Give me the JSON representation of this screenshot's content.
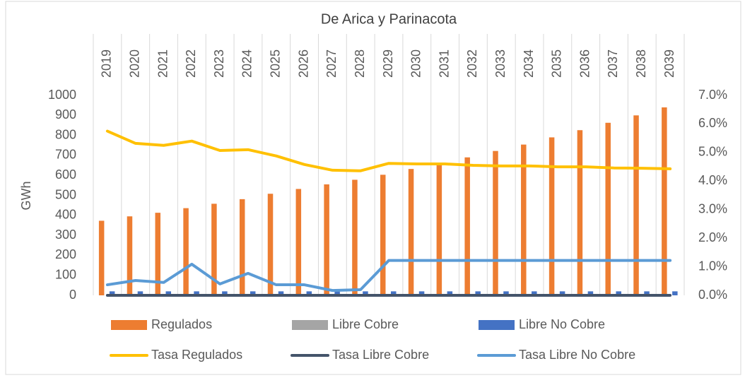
{
  "chart_data": {
    "type": "bar",
    "title": "De Arica y Parinacota",
    "ylabel": "GWh",
    "categories": [
      "2019",
      "2020",
      "2021",
      "2022",
      "2023",
      "2024",
      "2025",
      "2026",
      "2027",
      "2028",
      "2029",
      "2030",
      "2031",
      "2032",
      "2033",
      "2034",
      "2035",
      "2036",
      "2037",
      "2038",
      "2039"
    ],
    "ylim": [
      0,
      1000
    ],
    "yticks": [
      0,
      100,
      200,
      300,
      400,
      500,
      600,
      700,
      800,
      900,
      1000
    ],
    "y2lim": [
      0,
      7
    ],
    "y2ticks": [
      {
        "value": 0,
        "label": "0.0%"
      },
      {
        "value": 1,
        "label": "1.0%"
      },
      {
        "value": 2,
        "label": "2.0%"
      },
      {
        "value": 3,
        "label": "3.0%"
      },
      {
        "value": 4,
        "label": "4.0%"
      },
      {
        "value": 5,
        "label": "5.0%"
      },
      {
        "value": 6,
        "label": "6.0%"
      },
      {
        "value": 7,
        "label": "7.0%"
      }
    ],
    "series": [
      {
        "name": "Regulados",
        "type": "bar",
        "color": "#ed7d31",
        "values": [
          373,
          395,
          413,
          436,
          458,
          481,
          508,
          532,
          555,
          578,
          603,
          632,
          660,
          690,
          722,
          754,
          790,
          826,
          863,
          900,
          940
        ]
      },
      {
        "name": "Libre Cobre",
        "type": "bar",
        "color": "#a5a5a5",
        "values": [
          0,
          0,
          0,
          0,
          0,
          0,
          0,
          0,
          0,
          0,
          0,
          0,
          0,
          0,
          0,
          0,
          0,
          0,
          0,
          0,
          0
        ]
      },
      {
        "name": "Libre No Cobre",
        "type": "bar",
        "color": "#4472c4",
        "values": [
          20,
          20,
          20,
          20,
          20,
          20,
          20,
          20,
          20,
          20,
          20,
          20,
          20,
          20,
          20,
          20,
          20,
          20,
          20,
          20,
          20
        ]
      },
      {
        "name": "Tasa Regulados",
        "type": "line",
        "axis": "y2",
        "color": "#ffc000",
        "values": [
          5.75,
          5.32,
          5.25,
          5.4,
          5.07,
          5.1,
          4.88,
          4.58,
          4.38,
          4.36,
          4.62,
          4.6,
          4.6,
          4.55,
          4.53,
          4.53,
          4.5,
          4.5,
          4.46,
          4.45,
          4.43
        ]
      },
      {
        "name": "Tasa Libre Cobre",
        "type": "line",
        "axis": "y2",
        "color": "#44546a",
        "values": [
          0,
          0,
          0,
          0,
          0,
          0,
          0,
          0,
          0,
          0,
          0,
          0,
          0,
          0,
          0,
          0,
          0,
          0,
          0,
          0,
          0
        ]
      },
      {
        "name": "Tasa Libre No Cobre",
        "type": "line",
        "axis": "y2",
        "color": "#5b9bd5",
        "values": [
          0.37,
          0.52,
          0.45,
          1.09,
          0.4,
          0.77,
          0.37,
          0.37,
          0.17,
          0.2,
          1.22,
          1.22,
          1.22,
          1.22,
          1.22,
          1.22,
          1.22,
          1.22,
          1.22,
          1.22,
          1.22
        ]
      }
    ]
  }
}
